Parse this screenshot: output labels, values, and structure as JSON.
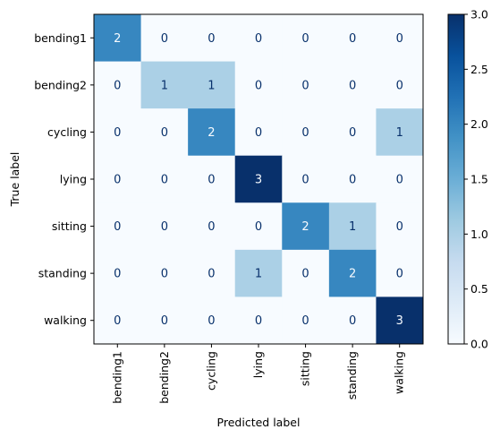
{
  "chart_data": {
    "type": "heatmap",
    "x_categories": [
      "bending1",
      "bending2",
      "cycling",
      "lying",
      "sitting",
      "standing",
      "walking"
    ],
    "y_categories": [
      "bending1",
      "bending2",
      "cycling",
      "lying",
      "sitting",
      "standing",
      "walking"
    ],
    "values": [
      [
        2,
        0,
        0,
        0,
        0,
        0,
        0
      ],
      [
        0,
        1,
        1,
        0,
        0,
        0,
        0
      ],
      [
        0,
        0,
        2,
        0,
        0,
        0,
        1
      ],
      [
        0,
        0,
        0,
        3,
        0,
        0,
        0
      ],
      [
        0,
        0,
        0,
        0,
        2,
        1,
        0
      ],
      [
        0,
        0,
        0,
        1,
        0,
        2,
        0
      ],
      [
        0,
        0,
        0,
        0,
        0,
        0,
        3
      ]
    ],
    "xlabel": "Predicted label",
    "ylabel": "True label",
    "colormap": "Blues",
    "vmin": 0,
    "vmax": 3,
    "colorbar_ticks": [
      "0.0",
      "0.5",
      "1.0",
      "1.5",
      "2.0",
      "2.5",
      "3.0"
    ],
    "colorbar_tick_values": [
      0,
      0.5,
      1.0,
      1.5,
      2.0,
      2.5,
      3.0
    ],
    "grid": false,
    "colors": {
      "low": "#f7fbff",
      "high": "#08306b",
      "text_dark": "#08306b",
      "text_light": "#f7fbff"
    }
  }
}
